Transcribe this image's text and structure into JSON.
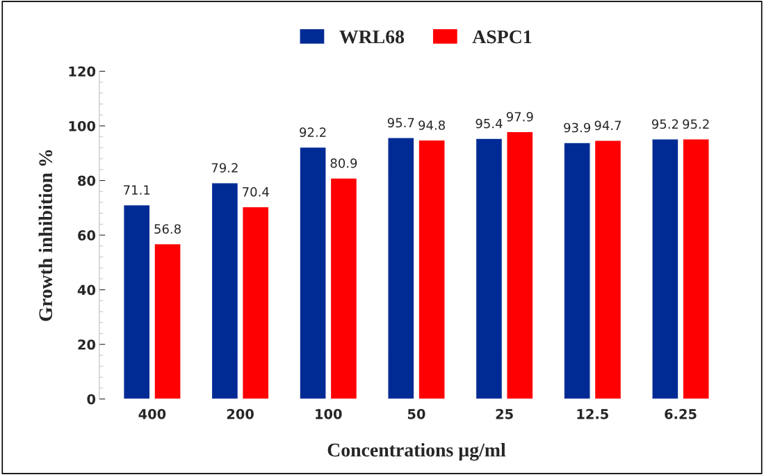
{
  "chart_data": {
    "type": "bar",
    "xlabel": "Concentrations µg/ml",
    "ylabel": "Growth inhibition %",
    "categories": [
      "400",
      "200",
      "100",
      "50",
      "25",
      "12.5",
      "6.25"
    ],
    "series": [
      {
        "name": "WRL68",
        "color": "#002b95",
        "values": [
          71.1,
          79.2,
          92.2,
          95.7,
          95.4,
          93.9,
          95.2
        ]
      },
      {
        "name": "ASPC1",
        "color": "#ff0000",
        "values": [
          56.8,
          70.4,
          80.9,
          94.8,
          97.9,
          94.7,
          95.2
        ]
      }
    ],
    "ylim": [
      0,
      120
    ],
    "yticks": [
      0,
      20,
      40,
      60,
      80,
      100,
      120
    ],
    "data_labels": true,
    "grid": false,
    "legend": "top"
  }
}
